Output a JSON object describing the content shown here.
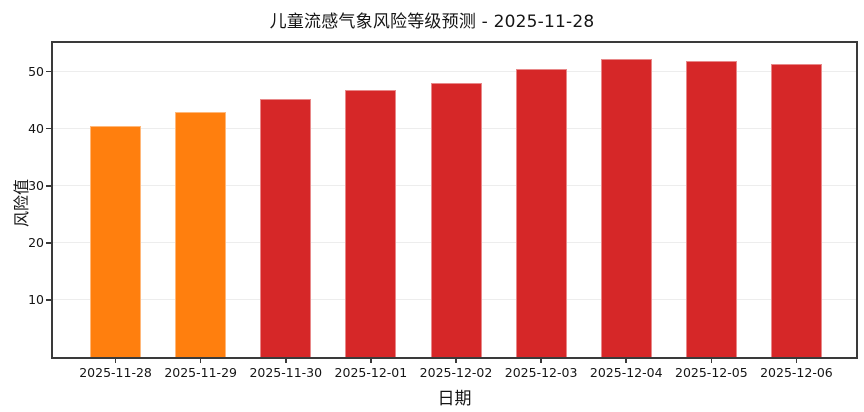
{
  "chart_data": {
    "type": "bar",
    "title": "儿童流感气象风险等级预测 - 2025-11-28",
    "xlabel": "日期",
    "ylabel": "风险值",
    "categories": [
      "2025-11-28",
      "2025-11-29",
      "2025-11-30",
      "2025-12-01",
      "2025-12-02",
      "2025-12-03",
      "2025-12-04",
      "2025-12-05",
      "2025-12-06"
    ],
    "values": [
      40.5,
      43.0,
      45.2,
      46.7,
      48.0,
      50.5,
      52.2,
      51.8,
      51.3
    ],
    "bar_colors": [
      "#ff7f0e",
      "#ff7f0e",
      "#d62728",
      "#d62728",
      "#d62728",
      "#d62728",
      "#d62728",
      "#d62728",
      "#d62728"
    ],
    "yticks": [
      10,
      20,
      30,
      40,
      50
    ],
    "ylim": [
      0,
      55
    ],
    "grid": true,
    "legend": "none",
    "colors": {
      "orange_bar": "#ff7f0e",
      "red_bar": "#d62728",
      "frame": "#3a3a3a",
      "gridline": "#ededed",
      "text": "#151515",
      "background": "#ffffff"
    }
  }
}
